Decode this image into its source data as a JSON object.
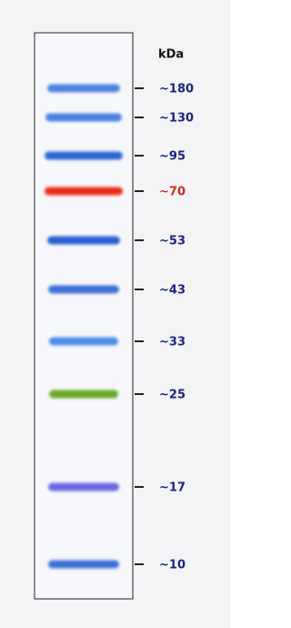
{
  "unit_label": "kDa",
  "bands": [
    {
      "label": "~180",
      "color": "#4d82e0",
      "label_color": "#1c2480"
    },
    {
      "label": "~130",
      "color": "#4a80e2",
      "label_color": "#1c2480"
    },
    {
      "label": "~95",
      "color": "#2f66d4",
      "label_color": "#1c2480"
    },
    {
      "label": "~70",
      "color": "#ec2a14",
      "label_color": "#d42a20"
    },
    {
      "label": "~53",
      "color": "#2a5fd0",
      "label_color": "#1c2480"
    },
    {
      "label": "~43",
      "color": "#3d6fd6",
      "label_color": "#1c2480"
    },
    {
      "label": "~33",
      "color": "#4a8cea",
      "label_color": "#1c2480"
    },
    {
      "label": "~25",
      "color": "#6aa828",
      "label_color": "#1c2480"
    },
    {
      "label": "~17",
      "color": "#6a68e0",
      "label_color": "#1c2480"
    },
    {
      "label": "~10",
      "color": "#3c70d8",
      "label_color": "#1c2480"
    }
  ]
}
